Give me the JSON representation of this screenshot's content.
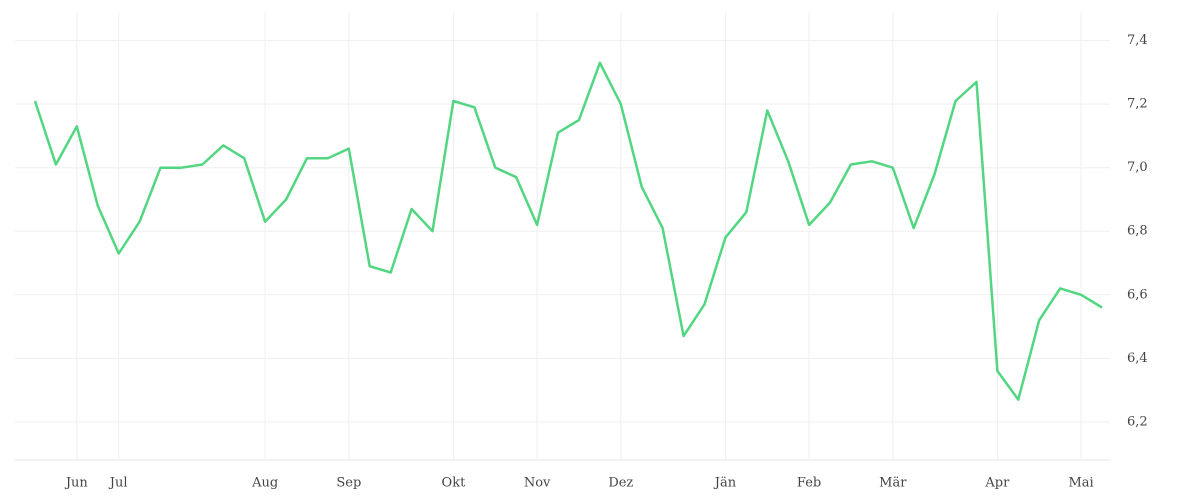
{
  "chart_data": {
    "type": "line",
    "categories": [
      null,
      null,
      "Jun",
      null,
      "Jul",
      null,
      null,
      null,
      null,
      null,
      null,
      "Aug",
      null,
      null,
      null,
      "Sep",
      null,
      null,
      null,
      null,
      "Okt",
      null,
      null,
      null,
      "Nov",
      null,
      null,
      null,
      "Dez",
      null,
      null,
      null,
      null,
      "Jän",
      null,
      null,
      null,
      "Feb",
      null,
      null,
      null,
      "Mär",
      null,
      null,
      null,
      null,
      "Apr",
      null,
      null,
      null,
      "Mai",
      null
    ],
    "series": [
      {
        "color": "#52d681",
        "values": [
          7.21,
          7.01,
          7.13,
          6.88,
          6.73,
          6.83,
          7.0,
          7.0,
          7.01,
          7.07,
          7.03,
          6.83,
          6.9,
          7.03,
          7.03,
          7.06,
          6.69,
          6.67,
          6.87,
          6.8,
          7.21,
          7.19,
          7.0,
          6.97,
          6.82,
          7.11,
          7.15,
          7.33,
          7.2,
          6.94,
          6.81,
          6.47,
          6.57,
          6.78,
          6.86,
          7.18,
          7.02,
          6.82,
          6.89,
          7.01,
          7.02,
          7.0,
          6.81,
          6.98,
          7.21,
          7.27,
          6.36,
          6.27,
          6.52,
          6.62,
          6.6,
          6.56
        ]
      }
    ],
    "ylim": [
      6.08,
      7.49
    ],
    "yticks": [
      {
        "value": 6.2,
        "label": "6,2"
      },
      {
        "value": 6.4,
        "label": "6,4"
      },
      {
        "value": 6.6,
        "label": "6,6"
      },
      {
        "value": 6.8,
        "label": "6,8"
      },
      {
        "value": 7.0,
        "label": "7,0"
      },
      {
        "value": 7.2,
        "label": "7,2"
      },
      {
        "value": 7.4,
        "label": "7,4"
      }
    ],
    "grid": true
  }
}
